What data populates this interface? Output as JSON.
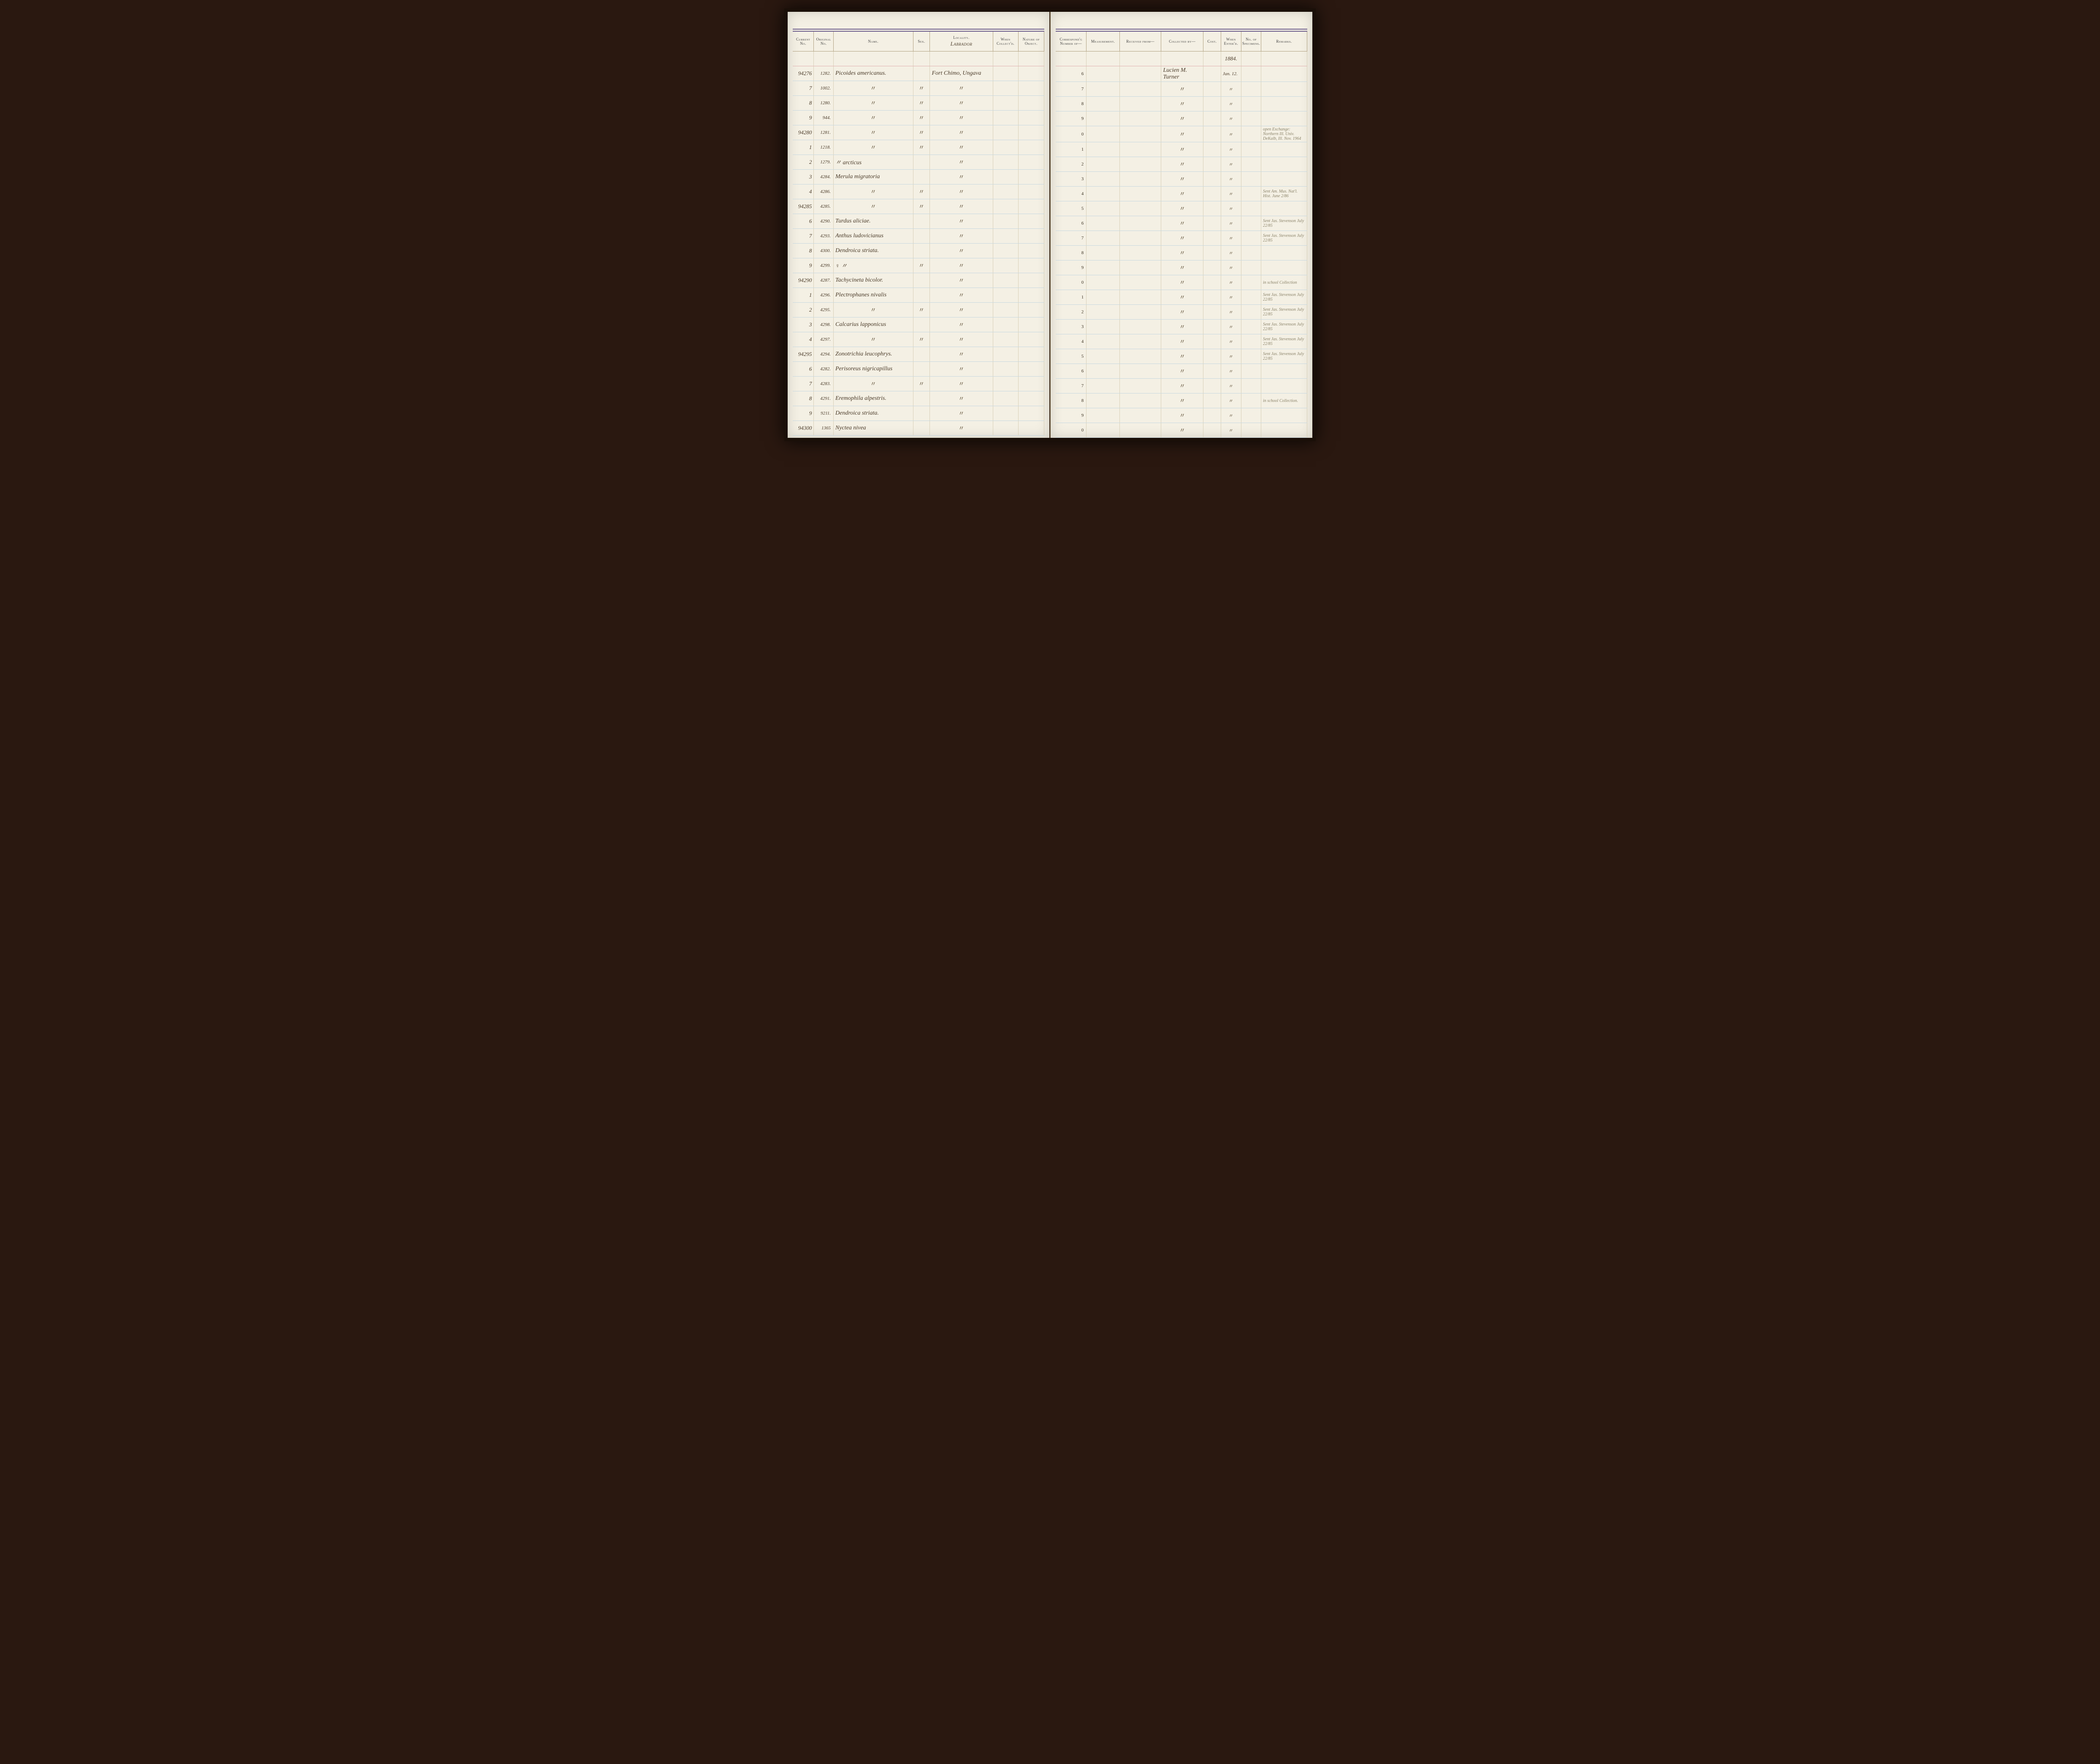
{
  "headers": {
    "left": {
      "current_no": "Current No.",
      "original_no": "Original No.",
      "name": "Name.",
      "sex": "Sex.",
      "locality": "Locality.",
      "locality_script": "Labrador",
      "when_collected": "When Collect'd.",
      "nature": "Nature of Object."
    },
    "right": {
      "correspond": "Correspond'g Number of—",
      "measurement": "Measurement.",
      "received_from": "Received from—",
      "collected_by": "Collected by—",
      "cost": "Cost.",
      "when_entered": "When Enter'd.",
      "no_specimens": "No. of Specimens.",
      "remarks": "Remarks."
    }
  },
  "year": "1884.",
  "colors": {
    "page_bg": "#f4f0e4",
    "rule_blue": "#c8d8e0",
    "rule_pink": "#e0b0b0",
    "rule_sep": "#d8d0b8",
    "header_border": "#6a5a8a",
    "ink": "#4a3a28",
    "faint_ink": "#8a8268"
  },
  "rows": [
    {
      "cur": "94276",
      "orig": "1282.",
      "name": "Picoides americanus.",
      "sex": "",
      "locality": "Fort Chimo, Ungava",
      "corr": "6",
      "collected_by": "Lucien M. Turner",
      "entered": "Jan. 12.",
      "remarks": ""
    },
    {
      "cur": "7",
      "orig": "1002.",
      "name": "〃",
      "sex": "〃",
      "locality": "〃",
      "corr": "7",
      "collected_by": "〃",
      "entered": "〃",
      "remarks": ""
    },
    {
      "cur": "8",
      "orig": "1280.",
      "name": "〃",
      "sex": "〃",
      "locality": "〃",
      "corr": "8",
      "collected_by": "〃",
      "entered": "〃",
      "remarks": ""
    },
    {
      "cur": "9",
      "orig": "944.",
      "name": "〃",
      "sex": "〃",
      "locality": "〃",
      "corr": "9",
      "collected_by": "〃",
      "entered": "〃",
      "remarks": ""
    },
    {
      "cur": "94280",
      "orig": "1281.",
      "name": "〃",
      "sex": "〃",
      "locality": "〃",
      "corr": "0",
      "collected_by": "〃",
      "entered": "〃",
      "remarks": "open Exchange: Northern Ill. Univ. DeKalb, Ill. Nov. 1964"
    },
    {
      "cur": "1",
      "orig": "1218.",
      "name": "〃",
      "sex": "〃",
      "locality": "〃",
      "corr": "1",
      "collected_by": "〃",
      "entered": "〃",
      "remarks": ""
    },
    {
      "cur": "2",
      "orig": "1279.",
      "name": "〃    arcticus",
      "sex": "",
      "locality": "〃",
      "corr": "2",
      "collected_by": "〃",
      "entered": "〃",
      "remarks": ""
    },
    {
      "cur": "3",
      "orig": "4284.",
      "name": "Merula migratoria",
      "sex": "",
      "locality": "〃",
      "corr": "3",
      "collected_by": "〃",
      "entered": "〃",
      "remarks": ""
    },
    {
      "cur": "4",
      "orig": "4286.",
      "name": "〃",
      "sex": "〃",
      "locality": "〃",
      "corr": "4",
      "collected_by": "〃",
      "entered": "〃",
      "remarks": "Sent Am. Mus. Nat'l. Hist. June 2/86"
    },
    {
      "cur": "94285",
      "orig": "4285.",
      "name": "〃",
      "sex": "〃",
      "locality": "〃",
      "corr": "5",
      "collected_by": "〃",
      "entered": "〃",
      "remarks": ""
    },
    {
      "cur": "6",
      "orig": "4290.",
      "name": "Turdus aliciae.",
      "sex": "",
      "locality": "〃",
      "corr": "6",
      "collected_by": "〃",
      "entered": "〃",
      "remarks": "Sent Jas. Stevenson July 22/85"
    },
    {
      "cur": "7",
      "orig": "4293.",
      "name": "Anthus ludovicianus",
      "sex": "",
      "locality": "〃",
      "corr": "7",
      "collected_by": "〃",
      "entered": "〃",
      "remarks": "Sent Jas. Stevenson July 22/85"
    },
    {
      "cur": "8",
      "orig": "4300.",
      "name": "Dendroica striata.",
      "sex": "",
      "locality": "〃",
      "corr": "8",
      "collected_by": "〃",
      "entered": "〃",
      "remarks": ""
    },
    {
      "cur": "9",
      "orig": "4299.",
      "name": "♀  〃",
      "sex": "〃",
      "locality": "〃",
      "corr": "9",
      "collected_by": "〃",
      "entered": "〃",
      "remarks": ""
    },
    {
      "cur": "94290",
      "orig": "4287.",
      "name": "Tachycineta bicolor.",
      "sex": "",
      "locality": "〃",
      "corr": "0",
      "collected_by": "〃",
      "entered": "〃",
      "remarks": "in school Collection"
    },
    {
      "cur": "1",
      "orig": "4296.",
      "name": "Plectrophanes nivalis",
      "sex": "",
      "locality": "〃",
      "corr": "1",
      "collected_by": "〃",
      "entered": "〃",
      "remarks": "Sent Jas. Stevenson July 22/85"
    },
    {
      "cur": "2",
      "orig": "4295.",
      "name": "〃",
      "sex": "〃",
      "locality": "〃",
      "corr": "2",
      "collected_by": "〃",
      "entered": "〃",
      "remarks": "Sent Jas. Stevenson July 22/85"
    },
    {
      "cur": "3",
      "orig": "4298.",
      "name": "Calcarius lapponicus",
      "sex": "",
      "locality": "〃",
      "corr": "3",
      "collected_by": "〃",
      "entered": "〃",
      "remarks": "Sent Jas. Stevenson July 22/85"
    },
    {
      "cur": "4",
      "orig": "4297.",
      "name": "〃",
      "sex": "〃",
      "locality": "〃",
      "corr": "4",
      "collected_by": "〃",
      "entered": "〃",
      "remarks": "Sent Jas. Stevenson July 22/85"
    },
    {
      "cur": "94295",
      "orig": "4294.",
      "name": "Zonotrichia leucophrys.",
      "sex": "",
      "locality": "〃",
      "corr": "5",
      "collected_by": "〃",
      "entered": "〃",
      "remarks": "Sent Jas. Stevenson July 22/85"
    },
    {
      "cur": "6",
      "orig": "4282.",
      "name": "Perisoreus nigricapillus",
      "sex": "",
      "locality": "〃",
      "corr": "6",
      "collected_by": "〃",
      "entered": "〃",
      "remarks": ""
    },
    {
      "cur": "7",
      "orig": "4283.",
      "name": "〃",
      "sex": "〃",
      "locality": "〃",
      "corr": "7",
      "collected_by": "〃",
      "entered": "〃",
      "remarks": ""
    },
    {
      "cur": "8",
      "orig": "4291.",
      "name": "Eremophila alpestris.",
      "sex": "",
      "locality": "〃",
      "corr": "8",
      "collected_by": "〃",
      "entered": "〃",
      "remarks": "in school Collection."
    },
    {
      "cur": "9",
      "orig": "9211.",
      "name": "Dendroica striata.",
      "sex": "",
      "locality": "〃",
      "corr": "9",
      "collected_by": "〃",
      "entered": "〃",
      "remarks": ""
    },
    {
      "cur": "94300",
      "orig": "1365",
      "name": "Nyctea nivea",
      "sex": "",
      "locality": "〃",
      "corr": "0",
      "collected_by": "〃",
      "entered": "〃",
      "remarks": ""
    }
  ]
}
